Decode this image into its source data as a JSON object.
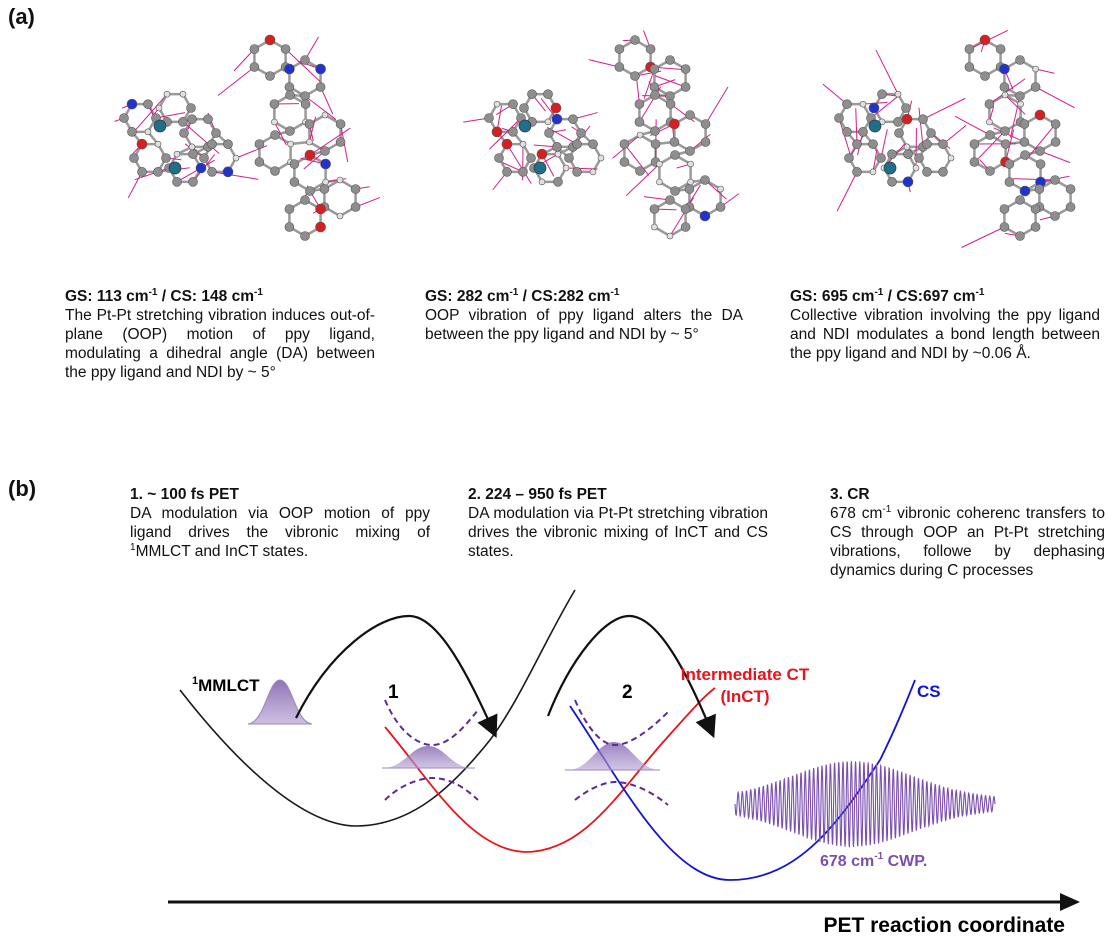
{
  "panel_a": {
    "label": "(a)",
    "modes": [
      {
        "head_gs": "GS: 113 cm",
        "head_sup1": "-1",
        "head_mid": " / CS: 148 cm",
        "head_sup2": "-1",
        "body": "The Pt-Pt stretching vibration induces out-of-plane (OOP) motion of ppy ligand, modulating a dihedral angle (DA) between the ppy ligand and NDI by ~ 5°"
      },
      {
        "head_gs": "GS: 282 cm",
        "head_sup1": "-1",
        "head_mid": " / CS:282 cm",
        "head_sup2": "-1",
        "body": "OOP vibration of ppy ligand alters the DA between the ppy ligand and NDI by ~ 5°"
      },
      {
        "head_gs": "GS: 695 cm",
        "head_sup1": "-1",
        "head_mid": " / CS:697 cm",
        "head_sup2": "-1",
        "body": "Collective vibration involving the ppy ligand and NDI modulates a bond length between the ppy ligand and NDI by ~0.06 Å."
      }
    ]
  },
  "panel_b": {
    "label": "(b)",
    "steps": [
      {
        "head": "1. ~ 100 fs PET",
        "body_pre": "DA modulation via OOP motion of ppy ligand drives the vibronic mixing of ",
        "body_sup": "1",
        "body_post": "MMLCT and InCT states."
      },
      {
        "head": "2. 224 – 950 fs PET",
        "body": "DA modulation via Pt-Pt stretching vibration drives the vibronic mixing of InCT and CS states."
      },
      {
        "head": "3. CR",
        "body_pre": "678 cm",
        "body_sup": "-1",
        "body_post": " vibronic coherenc transfers to CS through OOP an Pt-Pt stretching vibrations, followe by dephasing dynamics during C processes"
      }
    ],
    "curve_labels": {
      "mmlct_sup": "1",
      "mmlct": "MMLCT",
      "incT_line1": "Intermediate CT",
      "incT_line2": "(InCT)",
      "cs": "CS",
      "arrow1": "1",
      "arrow2": "2",
      "cwp": "678 cm",
      "cwp_sup": "-1",
      "cwp_post": " CWP."
    },
    "axis_label": "PET reaction coordinate",
    "colors": {
      "mmlct": "#1a1a1a",
      "incT": "#e8141c",
      "cs": "#1414d8",
      "wavepacket": "#7a4fb0",
      "vector": "#d61e8c",
      "dashed": "#5b2a9a"
    }
  }
}
